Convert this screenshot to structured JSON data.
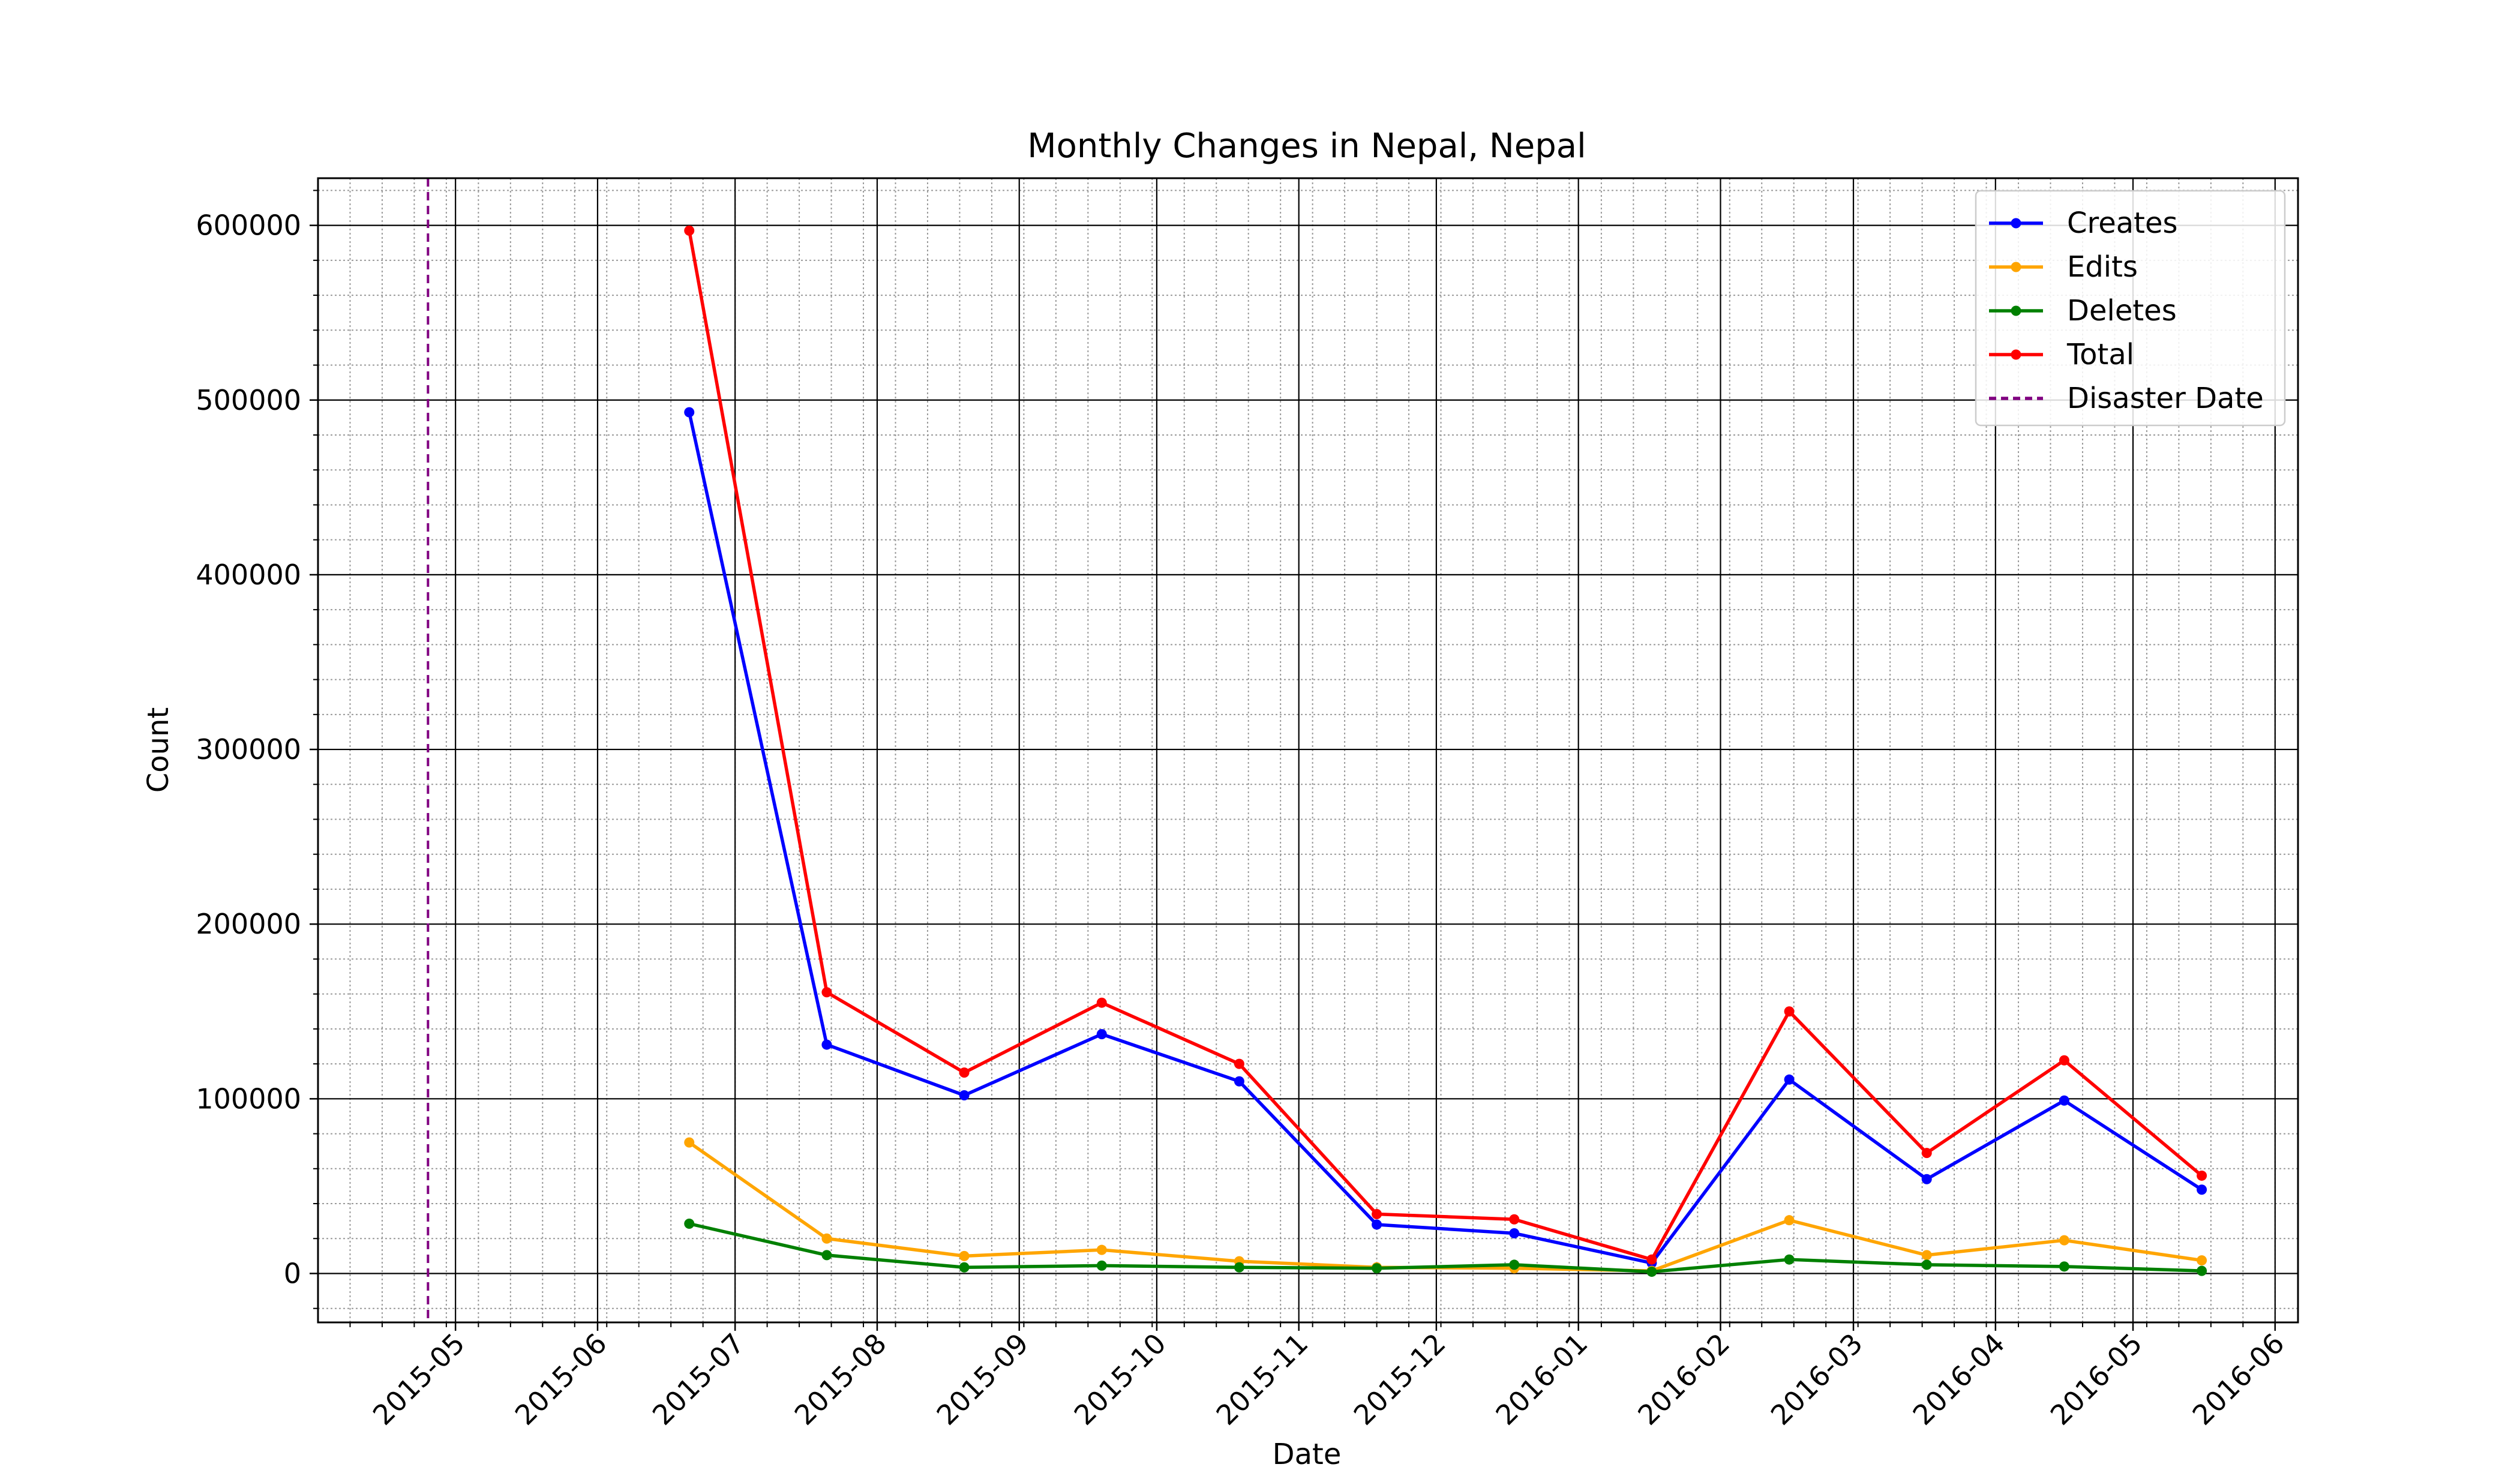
{
  "chart_data": {
    "type": "line",
    "title": "Monthly Changes in Nepal, Nepal",
    "xlabel": "Date",
    "ylabel": "Count",
    "x": [
      "2015-06-21",
      "2015-07-21",
      "2015-08-20",
      "2015-09-19",
      "2015-10-19",
      "2015-11-18",
      "2015-12-18",
      "2016-01-17",
      "2016-02-16",
      "2016-03-17",
      "2016-04-16",
      "2016-05-16"
    ],
    "series": [
      {
        "name": "Creates",
        "color": "#0000ff",
        "values": [
          493000,
          131000,
          102000,
          137000,
          110000,
          28000,
          23000,
          6000,
          111000,
          54000,
          99000,
          48000
        ]
      },
      {
        "name": "Edits",
        "color": "#ffa500",
        "values": [
          75000,
          20000,
          10000,
          13500,
          7000,
          3500,
          3000,
          1500,
          30500,
          10500,
          19000,
          7500
        ]
      },
      {
        "name": "Deletes",
        "color": "#008000",
        "values": [
          28500,
          10500,
          3500,
          4500,
          3500,
          3000,
          5000,
          1000,
          8000,
          5000,
          4000,
          1500
        ]
      },
      {
        "name": "Total",
        "color": "#ff0000",
        "values": [
          597000,
          161000,
          115000,
          155000,
          120000,
          34000,
          31000,
          8000,
          150000,
          69000,
          122000,
          56000
        ]
      }
    ],
    "annotations": [
      {
        "type": "vline",
        "x": "2015-04-25",
        "name": "Disaster Date",
        "color": "#800080",
        "style": "dashed"
      }
    ],
    "xlim": [
      "2015-04-01",
      "2016-06-06"
    ],
    "ylim": [
      -28000,
      627000
    ],
    "x_ticks": [
      "2015-05",
      "2015-06",
      "2015-07",
      "2015-08",
      "2015-09",
      "2015-10",
      "2015-11",
      "2015-12",
      "2016-01",
      "2016-02",
      "2016-03",
      "2016-04",
      "2016-05",
      "2016-06"
    ],
    "y_ticks": [
      0,
      100000,
      200000,
      300000,
      400000,
      500000,
      600000
    ],
    "grid": true,
    "minor_grid": true,
    "legend_position": "top-right"
  }
}
